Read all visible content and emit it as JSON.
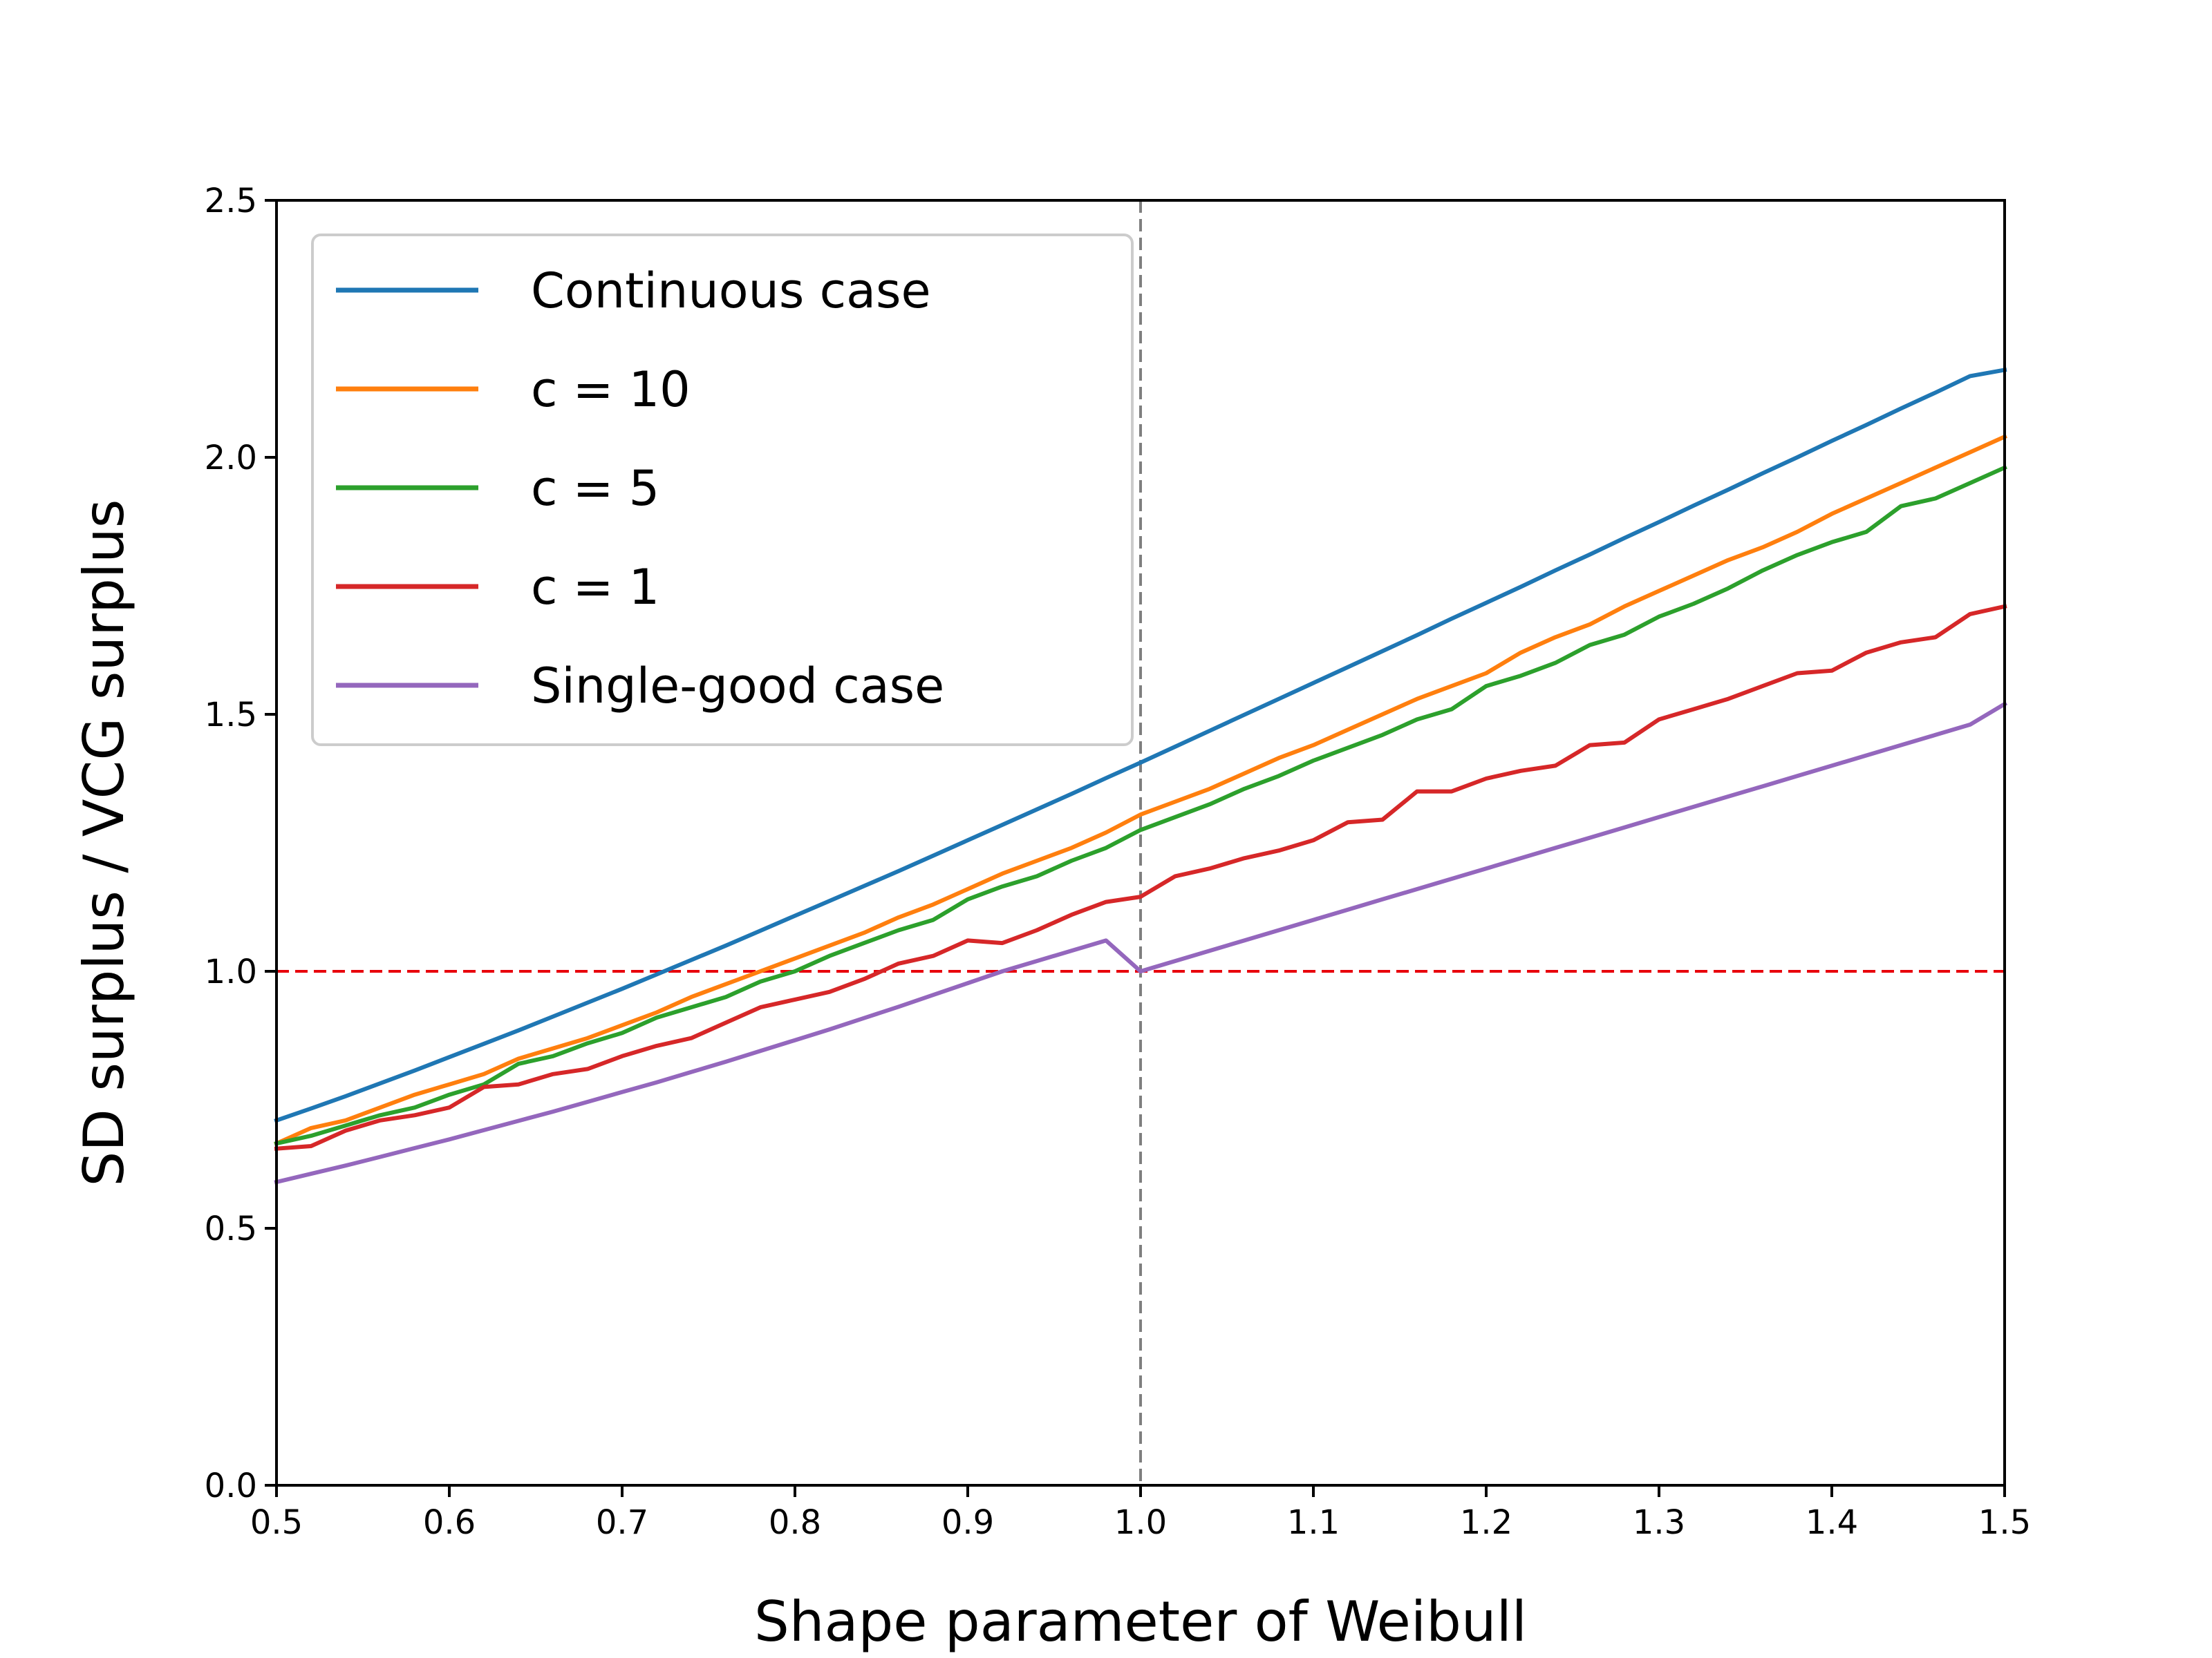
{
  "chart_data": {
    "type": "line",
    "title": "",
    "xlabel": "Shape parameter of Weibull",
    "ylabel": "SD surplus / VCG surplus",
    "xlim": [
      0.5,
      1.5
    ],
    "ylim": [
      0.0,
      2.5
    ],
    "xticks": [
      "0.5",
      "0.6",
      "0.7",
      "0.8",
      "0.9",
      "1.0",
      "1.1",
      "1.2",
      "1.3",
      "1.4",
      "1.5"
    ],
    "yticks": [
      "0.0",
      "0.5",
      "1.0",
      "1.5",
      "2.0",
      "2.5"
    ],
    "grid": false,
    "legend_position": "top-left",
    "x": [
      0.5,
      0.52,
      0.54,
      0.56,
      0.58,
      0.6,
      0.62,
      0.64,
      0.66,
      0.68,
      0.7,
      0.72,
      0.74,
      0.76,
      0.78,
      0.8,
      0.82,
      0.84,
      0.86,
      0.88,
      0.9,
      0.92,
      0.94,
      0.96,
      0.98,
      1.0,
      1.02,
      1.04,
      1.06,
      1.08,
      1.1,
      1.12,
      1.14,
      1.16,
      1.18,
      1.2,
      1.22,
      1.24,
      1.26,
      1.28,
      1.3,
      1.32,
      1.34,
      1.36,
      1.38,
      1.4,
      1.42,
      1.44,
      1.46,
      1.48,
      1.5
    ],
    "series": [
      {
        "name": "Continuous case",
        "color": "#1f77b4",
        "values": [
          0.71,
          0.733,
          0.757,
          0.782,
          0.807,
          0.833,
          0.859,
          0.885,
          0.912,
          0.939,
          0.966,
          0.994,
          1.022,
          1.05,
          1.079,
          1.108,
          1.137,
          1.166,
          1.195,
          1.225,
          1.255,
          1.285,
          1.315,
          1.345,
          1.376,
          1.406,
          1.437,
          1.468,
          1.499,
          1.53,
          1.561,
          1.592,
          1.623,
          1.654,
          1.686,
          1.717,
          1.748,
          1.78,
          1.811,
          1.843,
          1.874,
          1.906,
          1.937,
          1.969,
          2.0,
          2.032,
          2.063,
          2.095,
          2.126,
          2.158,
          2.17
        ]
      },
      {
        "name": "c = 10",
        "color": "#ff7f0e",
        "values": [
          0.665,
          0.695,
          0.71,
          0.735,
          0.76,
          0.78,
          0.8,
          0.83,
          0.85,
          0.87,
          0.895,
          0.92,
          0.95,
          0.975,
          1.0,
          1.025,
          1.05,
          1.075,
          1.105,
          1.13,
          1.16,
          1.19,
          1.215,
          1.24,
          1.27,
          1.305,
          1.33,
          1.355,
          1.385,
          1.415,
          1.44,
          1.47,
          1.5,
          1.53,
          1.555,
          1.58,
          1.62,
          1.65,
          1.675,
          1.71,
          1.74,
          1.77,
          1.8,
          1.825,
          1.855,
          1.89,
          1.92,
          1.95,
          1.98,
          2.01,
          2.04
        ]
      },
      {
        "name": "c = 5",
        "color": "#2ca02c",
        "values": [
          0.665,
          0.68,
          0.7,
          0.72,
          0.735,
          0.76,
          0.78,
          0.82,
          0.835,
          0.86,
          0.88,
          0.91,
          0.93,
          0.95,
          0.98,
          1.0,
          1.03,
          1.055,
          1.08,
          1.1,
          1.14,
          1.165,
          1.185,
          1.215,
          1.24,
          1.275,
          1.3,
          1.325,
          1.355,
          1.38,
          1.41,
          1.435,
          1.46,
          1.49,
          1.51,
          1.555,
          1.575,
          1.6,
          1.635,
          1.655,
          1.69,
          1.715,
          1.745,
          1.78,
          1.81,
          1.835,
          1.855,
          1.905,
          1.92,
          1.95,
          1.98
        ]
      },
      {
        "name": "c = 1",
        "color": "#d62728",
        "values": [
          0.655,
          0.66,
          0.69,
          0.71,
          0.72,
          0.735,
          0.775,
          0.78,
          0.8,
          0.81,
          0.835,
          0.855,
          0.87,
          0.9,
          0.93,
          0.945,
          0.96,
          0.985,
          1.015,
          1.03,
          1.06,
          1.055,
          1.08,
          1.11,
          1.135,
          1.145,
          1.185,
          1.2,
          1.22,
          1.235,
          1.255,
          1.29,
          1.295,
          1.35,
          1.35,
          1.375,
          1.39,
          1.4,
          1.44,
          1.445,
          1.49,
          1.51,
          1.53,
          1.555,
          1.58,
          1.585,
          1.62,
          1.64,
          1.65,
          1.695,
          1.71
        ]
      },
      {
        "name": "Single-good case",
        "color": "#9467bd",
        "values": [
          0.59,
          0.606,
          0.622,
          0.639,
          0.656,
          0.673,
          0.691,
          0.709,
          0.727,
          0.746,
          0.765,
          0.784,
          0.804,
          0.824,
          0.845,
          0.866,
          0.887,
          0.909,
          0.931,
          0.954,
          0.977,
          1.0,
          1.02,
          1.04,
          1.06,
          1.0,
          1.02,
          1.04,
          1.06,
          1.08,
          1.1,
          1.12,
          1.14,
          1.16,
          1.18,
          1.2,
          1.22,
          1.24,
          1.26,
          1.28,
          1.3,
          1.32,
          1.34,
          1.36,
          1.38,
          1.4,
          1.42,
          1.44,
          1.46,
          1.48,
          1.52
        ]
      }
    ],
    "reference_lines": [
      {
        "orientation": "horizontal",
        "value": 1.0,
        "color": "#e8000b",
        "style": "dashed"
      },
      {
        "orientation": "vertical",
        "value": 1.0,
        "color": "#7f7f7f",
        "style": "dashed"
      }
    ]
  }
}
